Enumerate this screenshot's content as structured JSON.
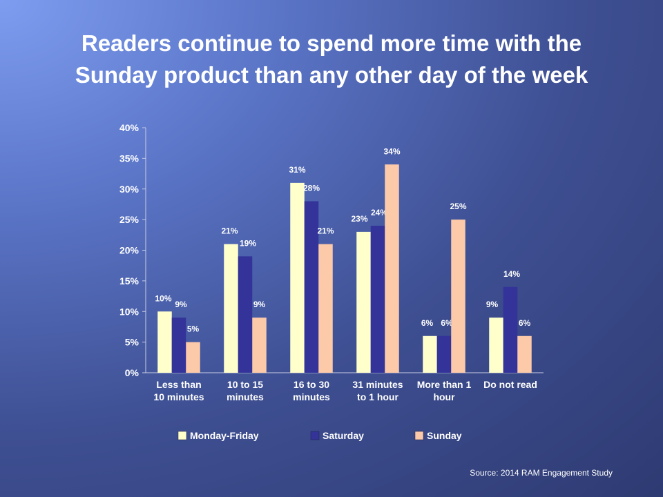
{
  "page": {
    "title_line1": "Readers continue to spend more time with the",
    "title_line2": "Sunday product than any other day of the week",
    "source": "Source:  2014  RAM Engagement Study"
  },
  "chart_data": {
    "type": "bar",
    "title": "Readers continue to spend more time with the Sunday product than any other day of the week",
    "xlabel": "",
    "ylabel": "",
    "ylim": [
      0,
      40
    ],
    "yticks": [
      "0%",
      "5%",
      "10%",
      "15%",
      "20%",
      "25%",
      "30%",
      "35%",
      "40%"
    ],
    "categories": [
      [
        "Less than",
        "10 minutes"
      ],
      [
        "10 to 15",
        "minutes"
      ],
      [
        "16 to 30",
        "minutes"
      ],
      [
        "31 minutes",
        "to 1 hour"
      ],
      [
        "More than 1",
        "hour"
      ],
      [
        "Do not read"
      ]
    ],
    "series": [
      {
        "name": "Monday-Friday",
        "color": "#ffffcc",
        "values": [
          10,
          21,
          31,
          23,
          6,
          9
        ]
      },
      {
        "name": "Saturday",
        "color": "#333399",
        "values": [
          9,
          19,
          28,
          24,
          6,
          14
        ]
      },
      {
        "name": "Sunday",
        "color": "#fcc9a9",
        "values": [
          5,
          9,
          21,
          34,
          25,
          6
        ]
      }
    ],
    "value_suffix": "%",
    "grid": false,
    "legend": "bottom"
  }
}
